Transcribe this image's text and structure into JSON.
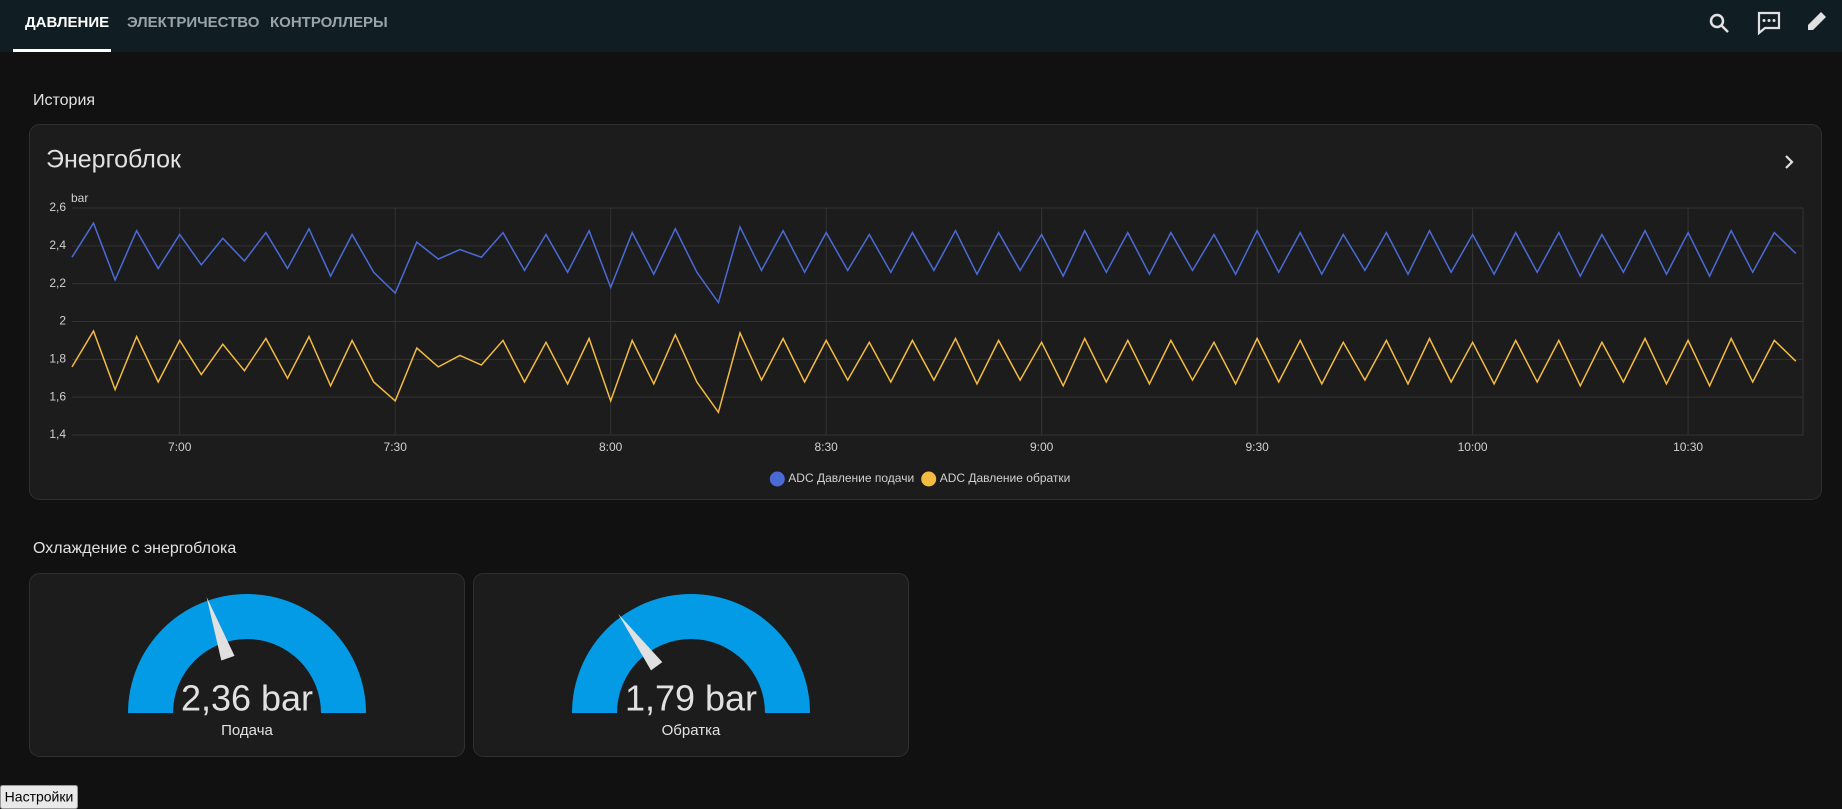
{
  "tabs": [
    "ДАВЛЕНИЕ",
    "ЭЛЕКТРИЧЕСТВО",
    "КОНТРОЛЛЕРЫ"
  ],
  "history": {
    "heading": "История"
  },
  "chart_data": {
    "type": "line",
    "title": "Энергоблок",
    "y_label": "bar",
    "x": [
      "6:45",
      "6:48",
      "6:51",
      "6:54",
      "6:57",
      "7:00",
      "7:03",
      "7:06",
      "7:09",
      "7:12",
      "7:15",
      "7:18",
      "7:21",
      "7:24",
      "7:27",
      "7:30",
      "7:33",
      "7:36",
      "7:39",
      "7:42",
      "7:45",
      "7:48",
      "7:51",
      "7:54",
      "7:57",
      "8:00",
      "8:03",
      "8:06",
      "8:09",
      "8:12",
      "8:15",
      "8:18",
      "8:21",
      "8:24",
      "8:27",
      "8:30",
      "8:33",
      "8:36",
      "8:39",
      "8:42",
      "8:45",
      "8:48",
      "8:51",
      "8:54",
      "8:57",
      "9:00",
      "9:03",
      "9:06",
      "9:09",
      "9:12",
      "9:15",
      "9:18",
      "9:21",
      "9:24",
      "9:27",
      "9:30",
      "9:33",
      "9:36",
      "9:39",
      "9:42",
      "9:45",
      "9:48",
      "9:51",
      "9:54",
      "9:57",
      "10:00",
      "10:03",
      "10:06",
      "10:09",
      "10:12",
      "10:15",
      "10:18",
      "10:21",
      "10:24",
      "10:27",
      "10:30",
      "10:33",
      "10:36",
      "10:39",
      "10:42",
      "10:45"
    ],
    "xlim": [
      "6:45",
      "10:46"
    ],
    "xticks": [
      "7:00",
      "7:30",
      "8:00",
      "8:30",
      "9:00",
      "9:30",
      "10:00",
      "10:30"
    ],
    "ylim": [
      1.4,
      2.6
    ],
    "yticks": [
      {
        "value": 1.4,
        "label": "1,4"
      },
      {
        "value": 1.6,
        "label": "1,6"
      },
      {
        "value": 1.8,
        "label": "1,8"
      },
      2,
      {
        "value": 2.2,
        "label": "2,2"
      },
      {
        "value": 2.4,
        "label": "2,4"
      },
      {
        "value": 2.6,
        "label": "2,6"
      }
    ],
    "grid": true,
    "legend": "bottom",
    "series": [
      {
        "name": "ADC Давление подачи",
        "color": "#4a6bd6",
        "values": [
          2.34,
          2.52,
          2.22,
          2.48,
          2.28,
          2.46,
          2.3,
          2.44,
          2.32,
          2.47,
          2.28,
          2.49,
          2.24,
          2.46,
          2.26,
          2.15,
          2.42,
          2.33,
          2.38,
          2.34,
          2.47,
          2.27,
          2.46,
          2.26,
          2.48,
          2.18,
          2.47,
          2.25,
          2.49,
          2.26,
          2.1,
          2.5,
          2.27,
          2.48,
          2.26,
          2.47,
          2.27,
          2.46,
          2.26,
          2.47,
          2.27,
          2.48,
          2.25,
          2.47,
          2.27,
          2.46,
          2.24,
          2.48,
          2.26,
          2.47,
          2.25,
          2.47,
          2.27,
          2.46,
          2.25,
          2.48,
          2.26,
          2.47,
          2.25,
          2.46,
          2.27,
          2.47,
          2.25,
          2.48,
          2.26,
          2.46,
          2.25,
          2.47,
          2.26,
          2.47,
          2.24,
          2.46,
          2.26,
          2.48,
          2.25,
          2.47,
          2.24,
          2.48,
          2.26,
          2.47,
          2.36
        ]
      },
      {
        "name": "ADC Давление обратки",
        "color": "#f4bb41",
        "values": [
          1.76,
          1.95,
          1.64,
          1.92,
          1.68,
          1.9,
          1.72,
          1.88,
          1.74,
          1.91,
          1.7,
          1.92,
          1.66,
          1.9,
          1.68,
          1.58,
          1.86,
          1.76,
          1.82,
          1.77,
          1.9,
          1.68,
          1.89,
          1.67,
          1.91,
          1.58,
          1.9,
          1.67,
          1.93,
          1.68,
          1.52,
          1.94,
          1.69,
          1.91,
          1.68,
          1.9,
          1.69,
          1.89,
          1.68,
          1.9,
          1.69,
          1.91,
          1.67,
          1.9,
          1.69,
          1.89,
          1.66,
          1.91,
          1.68,
          1.9,
          1.67,
          1.9,
          1.69,
          1.89,
          1.67,
          1.91,
          1.68,
          1.9,
          1.67,
          1.89,
          1.69,
          1.9,
          1.67,
          1.91,
          1.68,
          1.89,
          1.67,
          1.9,
          1.68,
          1.9,
          1.66,
          1.89,
          1.68,
          1.91,
          1.67,
          1.9,
          1.66,
          1.91,
          1.68,
          1.9,
          1.79
        ]
      }
    ]
  },
  "cooling": {
    "heading": "Охлаждение с энергоблока",
    "gauges": [
      {
        "name": "Подача",
        "value": 2.36,
        "value_label": "2,36 bar",
        "min": 0,
        "max": 6,
        "color": "#039be5"
      },
      {
        "name": "Обратка",
        "value": 1.79,
        "value_label": "1,79 bar",
        "min": 0,
        "max": 6,
        "color": "#039be5"
      }
    ]
  },
  "settings_button": "Настройки"
}
